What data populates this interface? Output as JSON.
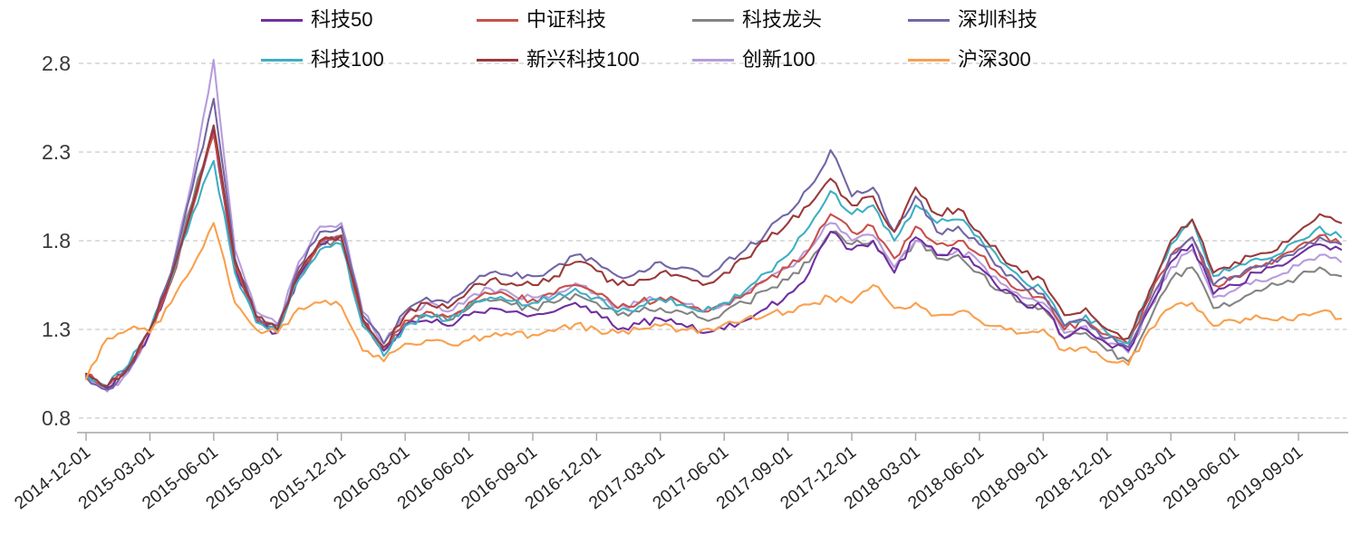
{
  "chart_data": {
    "type": "line",
    "title": "",
    "xlabel": "",
    "ylabel": "",
    "ylim": [
      0.8,
      2.8
    ],
    "y_ticks": [
      0.8,
      1.3,
      1.8,
      2.3,
      2.8
    ],
    "grid": "horizontal-dashed",
    "grid_color": "#c9c9c9",
    "axis_color": "#a6a6a6",
    "tick_label_color": "#262626",
    "legend_position": "top",
    "x_tick_labels": [
      "2014-12-01",
      "2015-03-01",
      "2015-06-01",
      "2015-09-01",
      "2015-12-01",
      "2016-03-01",
      "2016-06-01",
      "2016-09-01",
      "2016-12-01",
      "2017-03-01",
      "2017-06-01",
      "2017-09-01",
      "2017-12-01",
      "2018-03-01",
      "2018-06-01",
      "2018-09-01",
      "2018-12-01",
      "2019-03-01",
      "2019-06-01",
      "2019-09-01"
    ],
    "x": [
      "2014-12",
      "2015-01",
      "2015-02",
      "2015-03",
      "2015-04",
      "2015-05",
      "2015-06",
      "2015-07",
      "2015-08",
      "2015-09",
      "2015-10",
      "2015-11",
      "2015-12",
      "2016-01",
      "2016-02",
      "2016-03",
      "2016-04",
      "2016-05",
      "2016-06",
      "2016-07",
      "2016-08",
      "2016-09",
      "2016-10",
      "2016-11",
      "2016-12",
      "2017-01",
      "2017-02",
      "2017-03",
      "2017-04",
      "2017-05",
      "2017-06",
      "2017-07",
      "2017-08",
      "2017-09",
      "2017-10",
      "2017-11",
      "2017-12",
      "2018-01",
      "2018-02",
      "2018-03",
      "2018-04",
      "2018-05",
      "2018-06",
      "2018-07",
      "2018-08",
      "2018-09",
      "2018-10",
      "2018-11",
      "2018-12",
      "2019-01",
      "2019-02",
      "2019-03",
      "2019-04",
      "2019-05",
      "2019-06",
      "2019-07",
      "2019-08",
      "2019-09",
      "2019-10",
      "2019-11"
    ],
    "series": [
      {
        "name": "科技50",
        "color": "#7030A0",
        "values": [
          1.04,
          0.97,
          1.08,
          1.28,
          1.58,
          2.0,
          2.42,
          1.65,
          1.35,
          1.28,
          1.6,
          1.78,
          1.82,
          1.35,
          1.18,
          1.32,
          1.35,
          1.32,
          1.38,
          1.42,
          1.4,
          1.38,
          1.4,
          1.45,
          1.4,
          1.3,
          1.33,
          1.36,
          1.33,
          1.28,
          1.3,
          1.35,
          1.42,
          1.5,
          1.62,
          1.85,
          1.75,
          1.8,
          1.62,
          1.82,
          1.72,
          1.75,
          1.65,
          1.52,
          1.45,
          1.42,
          1.25,
          1.3,
          1.22,
          1.18,
          1.42,
          1.68,
          1.78,
          1.5,
          1.55,
          1.62,
          1.66,
          1.72,
          1.78,
          1.75
        ]
      },
      {
        "name": "中证科技",
        "color": "#C8504A",
        "values": [
          1.05,
          0.98,
          1.09,
          1.29,
          1.57,
          1.98,
          2.4,
          1.66,
          1.36,
          1.3,
          1.62,
          1.79,
          1.83,
          1.36,
          1.2,
          1.35,
          1.4,
          1.37,
          1.45,
          1.5,
          1.48,
          1.47,
          1.5,
          1.55,
          1.5,
          1.42,
          1.45,
          1.48,
          1.45,
          1.4,
          1.45,
          1.5,
          1.58,
          1.65,
          1.75,
          1.95,
          1.85,
          1.88,
          1.7,
          1.88,
          1.78,
          1.8,
          1.72,
          1.6,
          1.52,
          1.48,
          1.3,
          1.35,
          1.27,
          1.22,
          1.48,
          1.72,
          1.82,
          1.55,
          1.6,
          1.66,
          1.7,
          1.77,
          1.83,
          1.78
        ]
      },
      {
        "name": "科技龙头",
        "color": "#848484",
        "values": [
          1.05,
          0.97,
          1.08,
          1.3,
          1.6,
          2.02,
          2.45,
          1.68,
          1.36,
          1.3,
          1.6,
          1.77,
          1.8,
          1.34,
          1.18,
          1.33,
          1.38,
          1.35,
          1.42,
          1.46,
          1.44,
          1.42,
          1.45,
          1.5,
          1.45,
          1.38,
          1.4,
          1.42,
          1.4,
          1.36,
          1.4,
          1.45,
          1.52,
          1.58,
          1.68,
          1.85,
          1.78,
          1.8,
          1.65,
          1.8,
          1.7,
          1.72,
          1.62,
          1.52,
          1.45,
          1.42,
          1.25,
          1.28,
          1.18,
          1.12,
          1.35,
          1.58,
          1.65,
          1.42,
          1.45,
          1.52,
          1.55,
          1.6,
          1.65,
          1.6
        ]
      },
      {
        "name": "深圳科技",
        "color": "#7266A5",
        "values": [
          1.03,
          0.96,
          1.07,
          1.3,
          1.62,
          2.1,
          2.6,
          1.7,
          1.38,
          1.32,
          1.65,
          1.85,
          1.88,
          1.38,
          1.22,
          1.4,
          1.48,
          1.45,
          1.55,
          1.62,
          1.6,
          1.6,
          1.65,
          1.72,
          1.68,
          1.6,
          1.63,
          1.68,
          1.65,
          1.6,
          1.68,
          1.75,
          1.85,
          1.95,
          2.1,
          2.31,
          2.05,
          2.1,
          1.85,
          2.05,
          1.85,
          1.88,
          1.78,
          1.65,
          1.55,
          1.5,
          1.32,
          1.35,
          1.25,
          1.2,
          1.45,
          1.72,
          1.82,
          1.55,
          1.6,
          1.65,
          1.68,
          1.75,
          1.82,
          1.78
        ]
      },
      {
        "name": "科技100",
        "color": "#3EAFC4",
        "values": [
          1.05,
          0.98,
          1.1,
          1.3,
          1.58,
          1.95,
          2.25,
          1.62,
          1.34,
          1.28,
          1.58,
          1.75,
          1.78,
          1.32,
          1.15,
          1.32,
          1.38,
          1.35,
          1.43,
          1.48,
          1.46,
          1.45,
          1.48,
          1.53,
          1.48,
          1.4,
          1.43,
          1.47,
          1.44,
          1.4,
          1.45,
          1.52,
          1.62,
          1.72,
          1.88,
          2.08,
          1.95,
          2.0,
          1.8,
          2.0,
          1.9,
          1.92,
          1.82,
          1.68,
          1.58,
          1.52,
          1.32,
          1.38,
          1.28,
          1.22,
          1.5,
          1.78,
          1.92,
          1.6,
          1.65,
          1.7,
          1.72,
          1.8,
          1.88,
          1.82
        ]
      },
      {
        "name": "新兴科技100",
        "color": "#9B3A3A",
        "values": [
          1.05,
          0.98,
          1.09,
          1.3,
          1.6,
          2.0,
          2.45,
          1.68,
          1.37,
          1.3,
          1.62,
          1.8,
          1.83,
          1.36,
          1.2,
          1.38,
          1.45,
          1.42,
          1.52,
          1.58,
          1.56,
          1.55,
          1.6,
          1.68,
          1.63,
          1.55,
          1.58,
          1.62,
          1.6,
          1.55,
          1.62,
          1.7,
          1.8,
          1.9,
          2.0,
          2.15,
          2.0,
          2.05,
          1.85,
          2.1,
          1.95,
          1.98,
          1.85,
          1.72,
          1.62,
          1.58,
          1.38,
          1.42,
          1.3,
          1.25,
          1.52,
          1.8,
          1.92,
          1.62,
          1.68,
          1.72,
          1.75,
          1.85,
          1.95,
          1.9
        ]
      },
      {
        "name": "创新100",
        "color": "#B79CDB",
        "values": [
          1.03,
          0.95,
          1.06,
          1.28,
          1.62,
          2.15,
          2.82,
          1.75,
          1.4,
          1.33,
          1.68,
          1.88,
          1.9,
          1.4,
          1.22,
          1.38,
          1.45,
          1.4,
          1.48,
          1.53,
          1.5,
          1.48,
          1.5,
          1.56,
          1.5,
          1.42,
          1.45,
          1.48,
          1.45,
          1.4,
          1.44,
          1.5,
          1.58,
          1.65,
          1.75,
          1.9,
          1.8,
          1.83,
          1.65,
          1.8,
          1.72,
          1.75,
          1.68,
          1.56,
          1.48,
          1.45,
          1.28,
          1.32,
          1.22,
          1.17,
          1.42,
          1.65,
          1.75,
          1.48,
          1.52,
          1.58,
          1.6,
          1.66,
          1.72,
          1.68
        ]
      },
      {
        "name": "沪深300",
        "color": "#F9A04E",
        "values": [
          1.02,
          1.25,
          1.3,
          1.28,
          1.45,
          1.65,
          1.9,
          1.45,
          1.3,
          1.28,
          1.42,
          1.45,
          1.43,
          1.18,
          1.12,
          1.22,
          1.24,
          1.22,
          1.24,
          1.26,
          1.27,
          1.27,
          1.29,
          1.33,
          1.3,
          1.28,
          1.3,
          1.32,
          1.3,
          1.3,
          1.33,
          1.36,
          1.38,
          1.4,
          1.44,
          1.48,
          1.45,
          1.55,
          1.42,
          1.45,
          1.38,
          1.4,
          1.35,
          1.32,
          1.28,
          1.3,
          1.18,
          1.2,
          1.12,
          1.1,
          1.3,
          1.42,
          1.45,
          1.32,
          1.35,
          1.38,
          1.35,
          1.38,
          1.4,
          1.36
        ]
      }
    ]
  }
}
